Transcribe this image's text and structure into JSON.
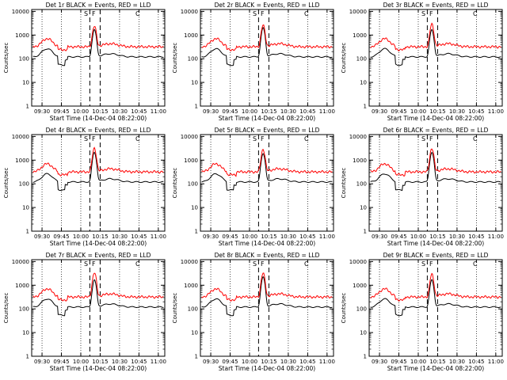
{
  "figure": {
    "common": {
      "xlabel": "Start Time (14-Dec-04 08:22:00)",
      "ylabel": "Counts/sec",
      "xtick_labels": [
        "09:30",
        "09:45",
        "10:00",
        "10:15",
        "10:30",
        "10:45",
        "11:00"
      ],
      "ytick_labels": [
        "1",
        "10",
        "100",
        "1000",
        "10000"
      ],
      "y_scale": "log",
      "ylim": [
        1,
        12000
      ],
      "xlim_minutes": [
        22,
        125
      ],
      "markers": [
        "S",
        "F",
        "C"
      ],
      "colors": {
        "events": "#000000",
        "lld": "#ff0000",
        "axes": "#000000",
        "background": "#ffffff"
      }
    }
  },
  "chart_data": [
    {
      "type": "line",
      "title": "Det 1r BLACK = Events, RED = LLD",
      "series": [
        {
          "name": "Events",
          "color": "#000000"
        },
        {
          "name": "LLD",
          "color": "#ff0000"
        }
      ],
      "peak_events": 1500,
      "peak_lld": 2000,
      "base_events": 120,
      "base_lld": 320
    },
    {
      "type": "line",
      "title": "Det 2r BLACK = Events, RED = LLD",
      "series": [
        {
          "name": "Events",
          "color": "#000000"
        },
        {
          "name": "LLD",
          "color": "#ff0000"
        }
      ],
      "peak_events": 1800,
      "peak_lld": 2200,
      "base_events": 120,
      "base_lld": 320
    },
    {
      "type": "line",
      "title": "Det 3r BLACK = Events, RED = LLD",
      "series": [
        {
          "name": "Events",
          "color": "#000000"
        },
        {
          "name": "LLD",
          "color": "#ff0000"
        }
      ],
      "peak_events": 1500,
      "peak_lld": 2500,
      "base_events": 120,
      "base_lld": 320
    },
    {
      "type": "line",
      "title": "Det 4r BLACK = Events, RED = LLD",
      "series": [
        {
          "name": "Events",
          "color": "#000000"
        },
        {
          "name": "LLD",
          "color": "#ff0000"
        }
      ],
      "peak_events": 2000,
      "peak_lld": 2800,
      "base_events": 120,
      "base_lld": 320
    },
    {
      "type": "line",
      "title": "Det 5r BLACK = Events, RED = LLD",
      "series": [
        {
          "name": "Events",
          "color": "#000000"
        },
        {
          "name": "LLD",
          "color": "#ff0000"
        }
      ],
      "peak_events": 1800,
      "peak_lld": 2500,
      "base_events": 120,
      "base_lld": 320
    },
    {
      "type": "line",
      "title": "Det 6r BLACK = Events, RED = LLD",
      "series": [
        {
          "name": "Events",
          "color": "#000000"
        },
        {
          "name": "LLD",
          "color": "#ff0000"
        }
      ],
      "peak_events": 2000,
      "peak_lld": 2800,
      "base_events": 120,
      "base_lld": 320
    },
    {
      "type": "line",
      "title": "Det 7r BLACK = Events, RED = LLD",
      "series": [
        {
          "name": "Events",
          "color": "#000000"
        },
        {
          "name": "LLD",
          "color": "#ff0000"
        }
      ],
      "peak_events": 1500,
      "peak_lld": 3000,
      "base_events": 120,
      "base_lld": 320
    },
    {
      "type": "line",
      "title": "Det 8r BLACK = Events, RED = LLD",
      "series": [
        {
          "name": "Events",
          "color": "#000000"
        },
        {
          "name": "LLD",
          "color": "#ff0000"
        }
      ],
      "peak_events": 2000,
      "peak_lld": 2800,
      "base_events": 120,
      "base_lld": 320
    },
    {
      "type": "line",
      "title": "Det 9r BLACK = Events, RED = LLD",
      "series": [
        {
          "name": "Events",
          "color": "#000000"
        },
        {
          "name": "LLD",
          "color": "#ff0000"
        }
      ],
      "peak_events": 1500,
      "peak_lld": 2500,
      "base_events": 120,
      "base_lld": 320
    }
  ]
}
